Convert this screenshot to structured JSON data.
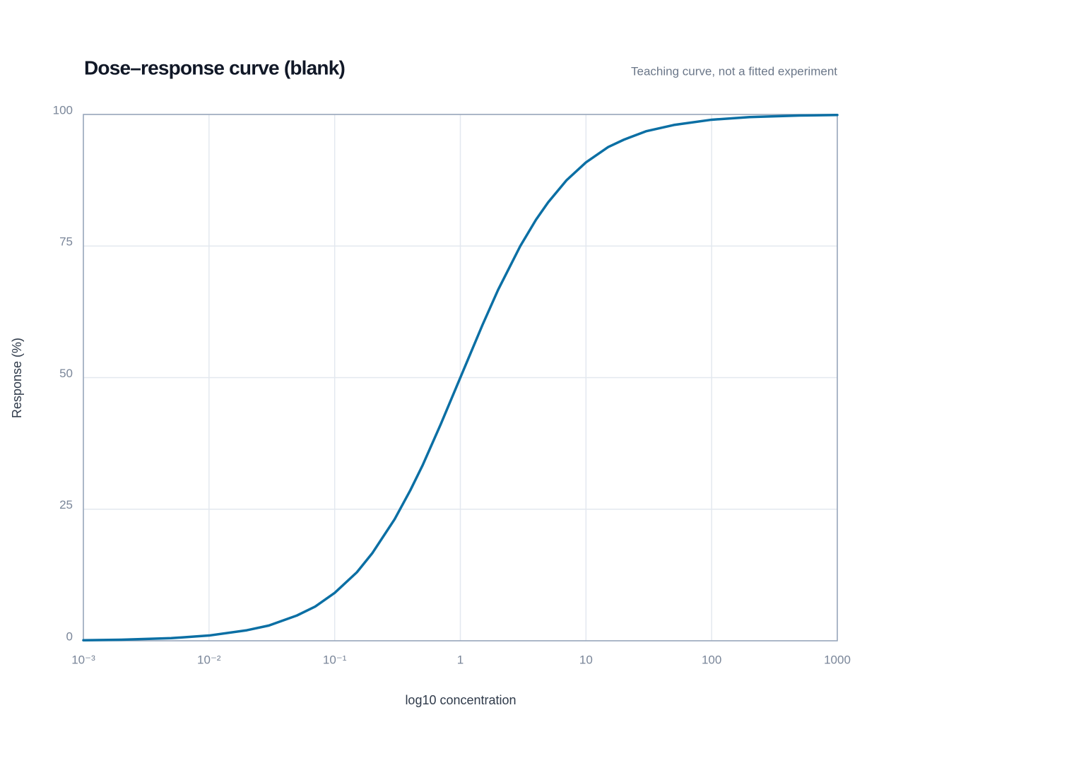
{
  "chart_data": {
    "type": "line",
    "title": "Dose–response curve (blank)",
    "subtitle": "Teaching curve, not a fitted experiment",
    "x_label": "log10 concentration",
    "y_label": "Response (%)",
    "xscale": "log",
    "grid": true,
    "x": [
      0.001,
      0.002,
      0.005,
      0.01,
      0.02,
      0.03,
      0.05,
      0.07,
      0.1,
      0.15,
      0.2,
      0.3,
      0.4,
      0.5,
      0.7,
      1,
      1.5,
      2,
      3,
      4,
      5,
      7,
      10,
      15,
      20,
      30,
      50,
      100,
      200,
      500,
      1000
    ],
    "series": [
      {
        "color": "#0b6fa4",
        "values": [
          0.1,
          0.2,
          0.5,
          1.0,
          2.0,
          2.9,
          4.8,
          6.5,
          9.1,
          13.0,
          16.7,
          23.1,
          28.6,
          33.3,
          41.2,
          50,
          60,
          66.7,
          75,
          80,
          83.3,
          87.5,
          90.9,
          93.8,
          95.2,
          96.8,
          98.0,
          99.0,
          99.5,
          99.8,
          99.9
        ]
      }
    ],
    "xlim": [
      0.001,
      1000
    ],
    "ylim": [
      0,
      100
    ],
    "xticks": [
      {
        "value": 0.001,
        "label": "10⁻³"
      },
      {
        "value": 0.01,
        "label": "10⁻²"
      },
      {
        "value": 0.1,
        "label": "10⁻¹"
      },
      1,
      10,
      100,
      1000
    ],
    "yticks": [
      0,
      25,
      50,
      75,
      100
    ]
  }
}
